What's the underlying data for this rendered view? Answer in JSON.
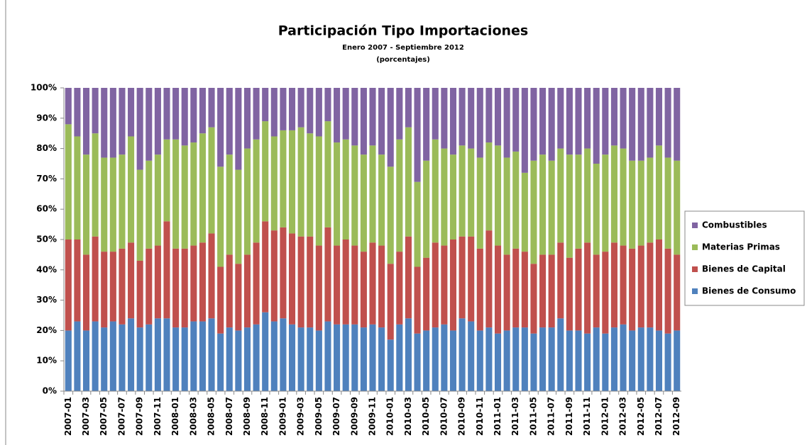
{
  "chart_data": {
    "type": "stacked_bar",
    "title": "Participación Tipo Importaciones",
    "subtitle": [
      "Enero 2007 - Septiembre 2012",
      "(porcentajes)"
    ],
    "categories": [
      "2007-01",
      null,
      "2007-03",
      null,
      "2007-05",
      null,
      "2007-07",
      null,
      "2007-09",
      null,
      "2007-11",
      null,
      "2008-01",
      null,
      "2008-03",
      null,
      "2008-05",
      null,
      "2008-07",
      null,
      "2008-09",
      null,
      "2008-11",
      null,
      "2009-01",
      null,
      "2009-03",
      null,
      "2009-05",
      null,
      "2009-07",
      null,
      "2009-09",
      null,
      "2009-11",
      null,
      "2010-01",
      null,
      "2010-03",
      null,
      "2010-05",
      null,
      "2010-07",
      null,
      "2010-09",
      null,
      "2010-11",
      null,
      "2011-01",
      null,
      "2011-03",
      null,
      "2011-05",
      null,
      "2011-07",
      null,
      "2011-09",
      null,
      "2011-11",
      null,
      "2012-01",
      null,
      "2012-03",
      null,
      "2012-05",
      null,
      "2012-07",
      null,
      "2012-09"
    ],
    "series": [
      {
        "name": "Bienes de Consumo",
        "color": "#4f81bd",
        "values": [
          20,
          23,
          20,
          23,
          21,
          23,
          22,
          24,
          21,
          22,
          24,
          24,
          21,
          21,
          23,
          23,
          24,
          19,
          21,
          20,
          21,
          22,
          26,
          23,
          24,
          22,
          21,
          21,
          20,
          23,
          22,
          22,
          22,
          21,
          22,
          21,
          17,
          22,
          24,
          19,
          20,
          21,
          22,
          20,
          24,
          23,
          20,
          21,
          19,
          20,
          21,
          21,
          19,
          21,
          21,
          24,
          20,
          20,
          19,
          21,
          19,
          21,
          22,
          20,
          21,
          21,
          20,
          19,
          20
        ]
      },
      {
        "name": "Bienes de Capital",
        "color": "#c0504d",
        "values": [
          30,
          27,
          25,
          28,
          25,
          23,
          25,
          25,
          22,
          25,
          24,
          32,
          26,
          26,
          25,
          26,
          28,
          22,
          24,
          22,
          24,
          27,
          30,
          30,
          30,
          30,
          30,
          30,
          28,
          31,
          26,
          28,
          26,
          25,
          27,
          27,
          25,
          24,
          27,
          22,
          24,
          28,
          26,
          30,
          27,
          28,
          27,
          32,
          29,
          25,
          26,
          25,
          23,
          24,
          24,
          25,
          24,
          27,
          30,
          24,
          27,
          28,
          26,
          27,
          27,
          28,
          30,
          28,
          25
        ]
      },
      {
        "name": "Materias Primas",
        "color": "#9bbb59",
        "values": [
          38,
          34,
          33,
          34,
          31,
          31,
          31,
          35,
          30,
          29,
          30,
          27,
          36,
          34,
          34,
          36,
          35,
          33,
          33,
          31,
          35,
          34,
          33,
          31,
          32,
          34,
          36,
          34,
          36,
          35,
          34,
          33,
          33,
          32,
          32,
          30,
          32,
          37,
          36,
          28,
          32,
          34,
          32,
          28,
          30,
          29,
          30,
          29,
          33,
          32,
          32,
          26,
          34,
          33,
          31,
          31,
          34,
          31,
          31,
          30,
          32,
          32,
          32,
          29,
          28,
          28,
          31,
          30,
          31
        ]
      },
      {
        "name": "Combustibles",
        "color": "#8064a2",
        "values": [
          12,
          16,
          22,
          15,
          23,
          23,
          22,
          16,
          27,
          24,
          22,
          17,
          17,
          19,
          18,
          15,
          13,
          26,
          22,
          27,
          20,
          17,
          11,
          16,
          14,
          14,
          13,
          15,
          16,
          11,
          18,
          17,
          19,
          22,
          19,
          22,
          26,
          17,
          13,
          31,
          24,
          17,
          20,
          22,
          19,
          20,
          23,
          18,
          19,
          23,
          21,
          28,
          24,
          22,
          24,
          20,
          22,
          22,
          20,
          25,
          22,
          19,
          20,
          24,
          24,
          23,
          19,
          23,
          24
        ]
      }
    ],
    "ylim": [
      0,
      100
    ],
    "yticks": [
      {
        "value": 0,
        "label": "0%"
      },
      {
        "value": 10,
        "label": "10%"
      },
      {
        "value": 20,
        "label": "20%"
      },
      {
        "value": 30,
        "label": "30%"
      },
      {
        "value": 40,
        "label": "40%"
      },
      {
        "value": 50,
        "label": "50%"
      },
      {
        "value": 60,
        "label": "60%"
      },
      {
        "value": 70,
        "label": "70%"
      },
      {
        "value": 80,
        "label": "80%"
      },
      {
        "value": 90,
        "label": "90%"
      },
      {
        "value": 100,
        "label": "100%"
      }
    ],
    "grid": false,
    "legend": "right"
  }
}
